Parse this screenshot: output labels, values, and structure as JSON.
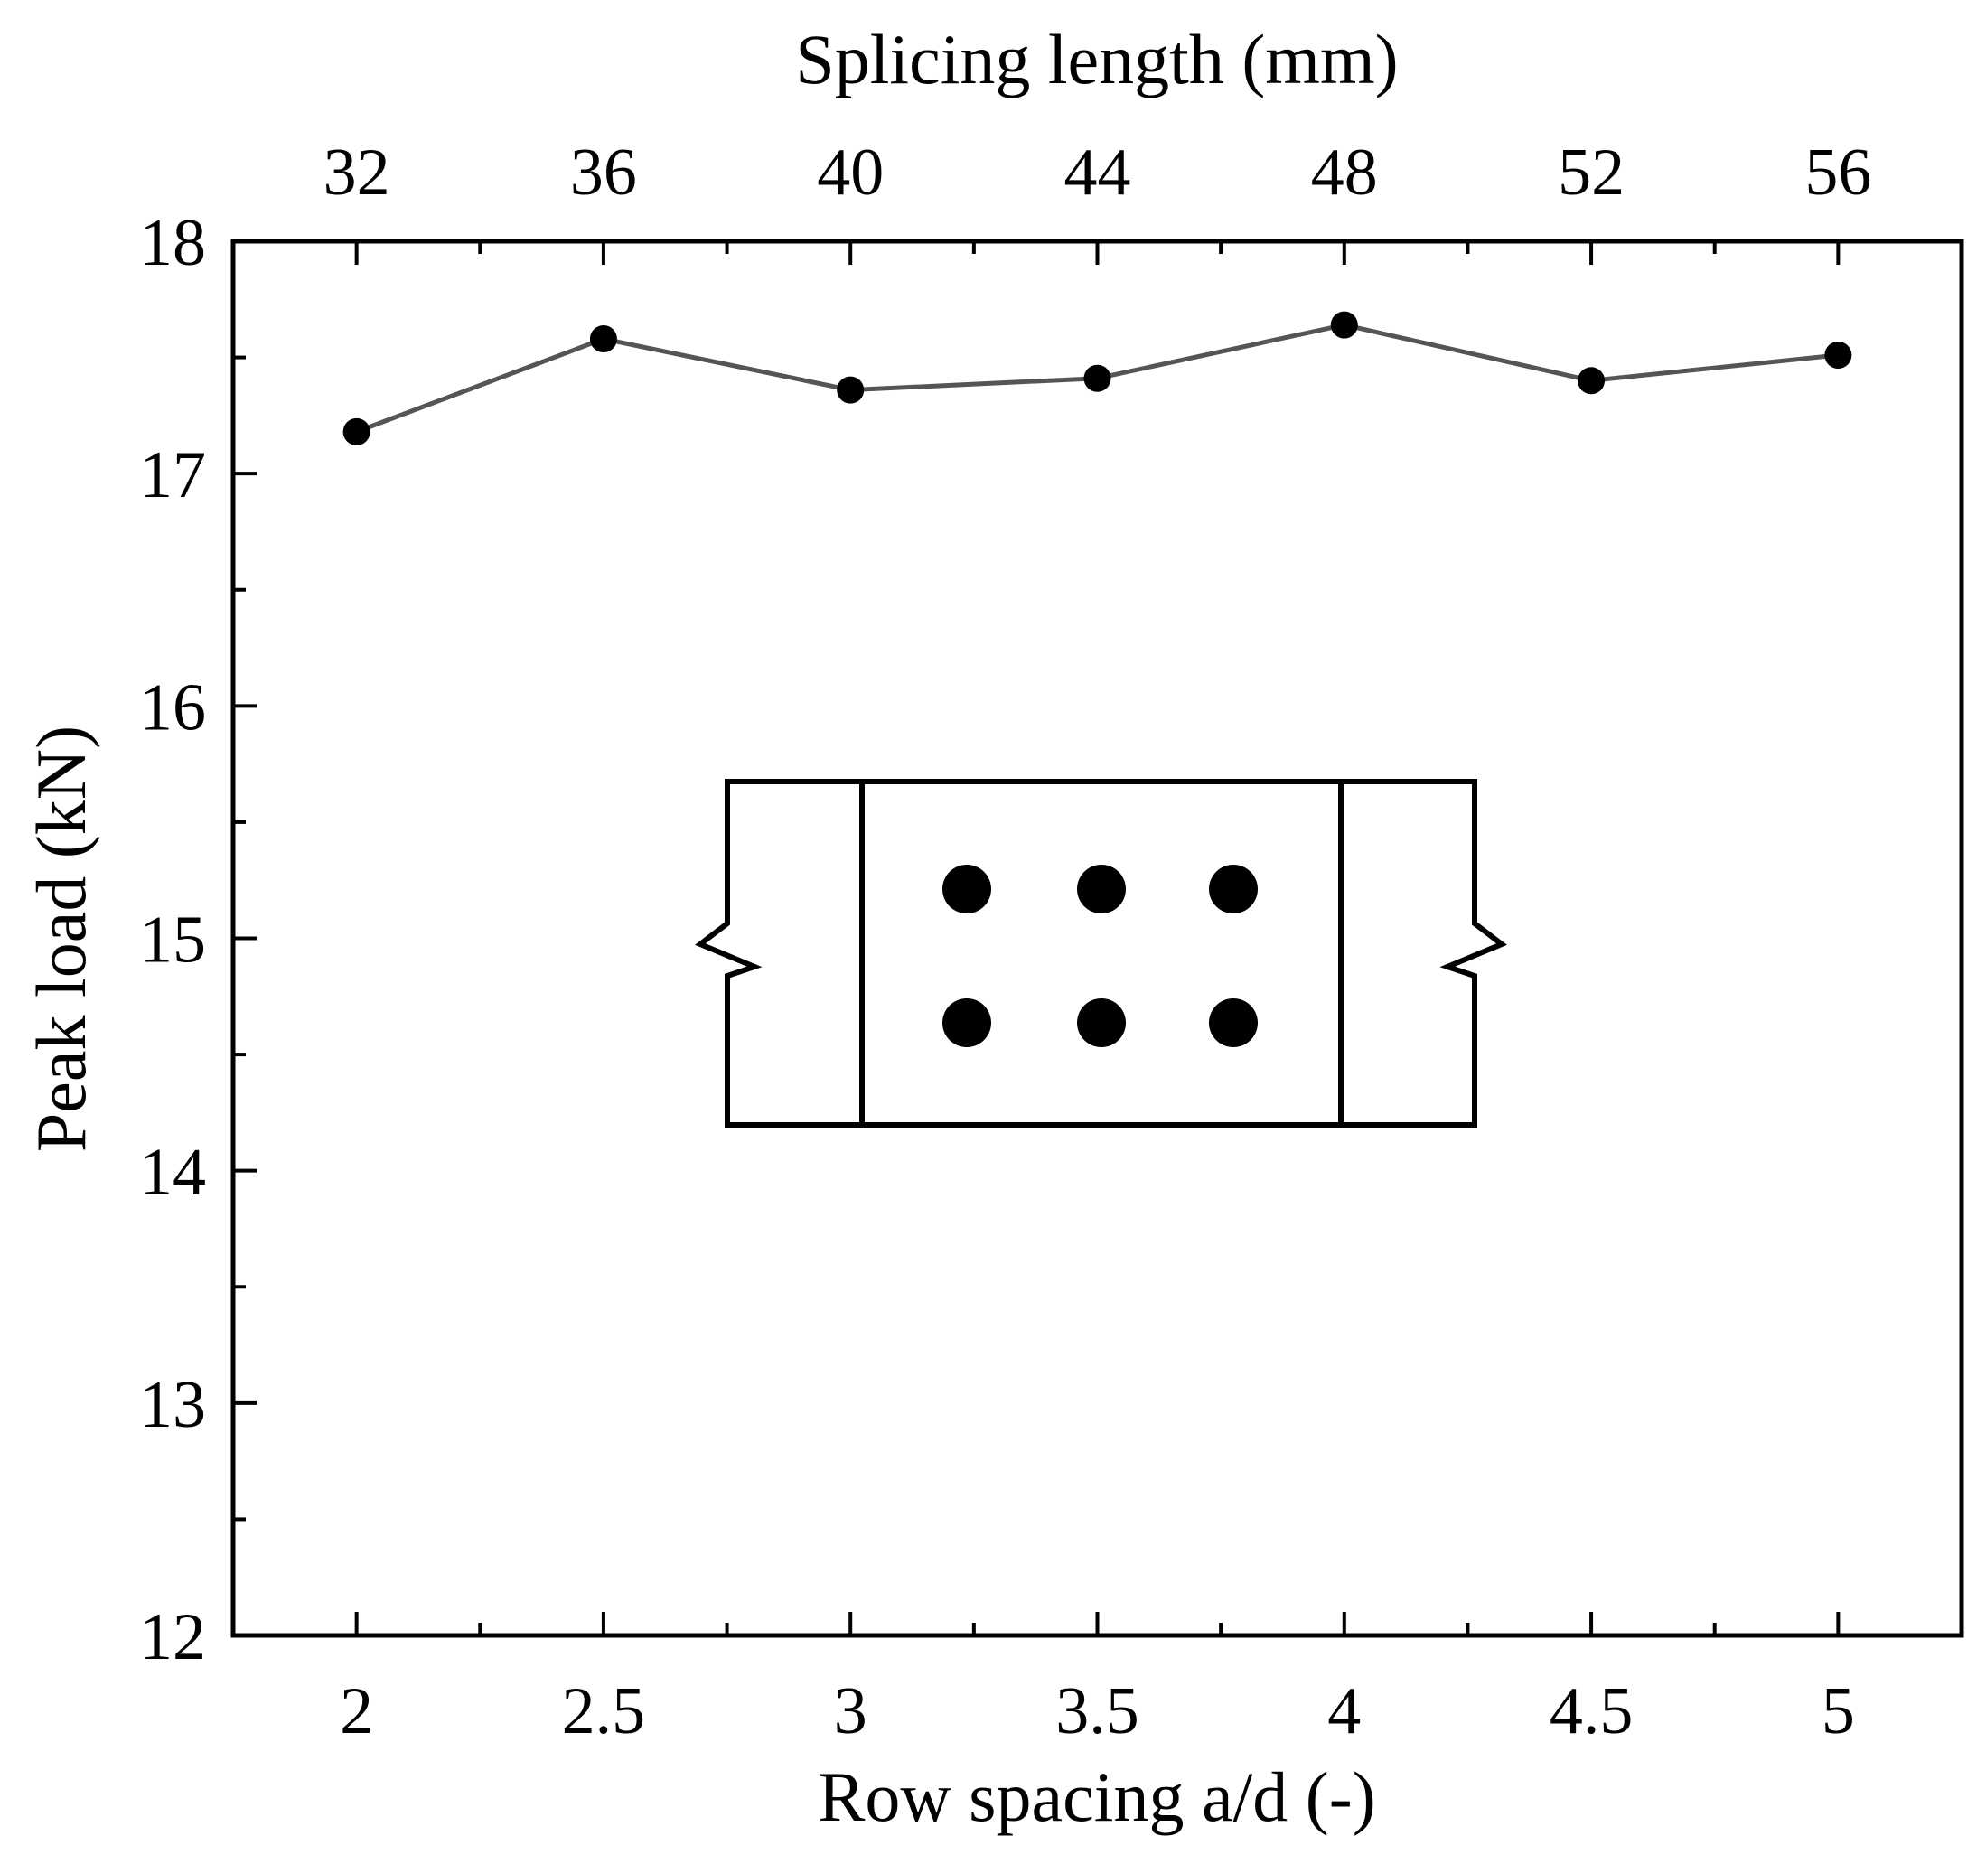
{
  "chart_data": {
    "type": "line",
    "xlabel": "Row spacing a/d (-)",
    "x2label": "Splicing length (mm)",
    "ylabel": "Peak load (kN)",
    "xlim": [
      1.75,
      5.25
    ],
    "ylim": [
      12,
      18
    ],
    "x_ticks": [
      "2",
      "2.5",
      "3",
      "3.5",
      "4",
      "4.5",
      "5"
    ],
    "x2_ticks": [
      "32",
      "36",
      "40",
      "44",
      "48",
      "52",
      "56"
    ],
    "y_ticks": [
      "12",
      "13",
      "14",
      "15",
      "16",
      "17",
      "18"
    ],
    "x": [
      2,
      2.5,
      3,
      3.5,
      4,
      4.5,
      5
    ],
    "series": [
      {
        "values": [
          17.18,
          17.58,
          17.36,
          17.41,
          17.64,
          17.4,
          17.51
        ],
        "color": "#555555"
      }
    ],
    "grid": false,
    "legend": "none"
  }
}
